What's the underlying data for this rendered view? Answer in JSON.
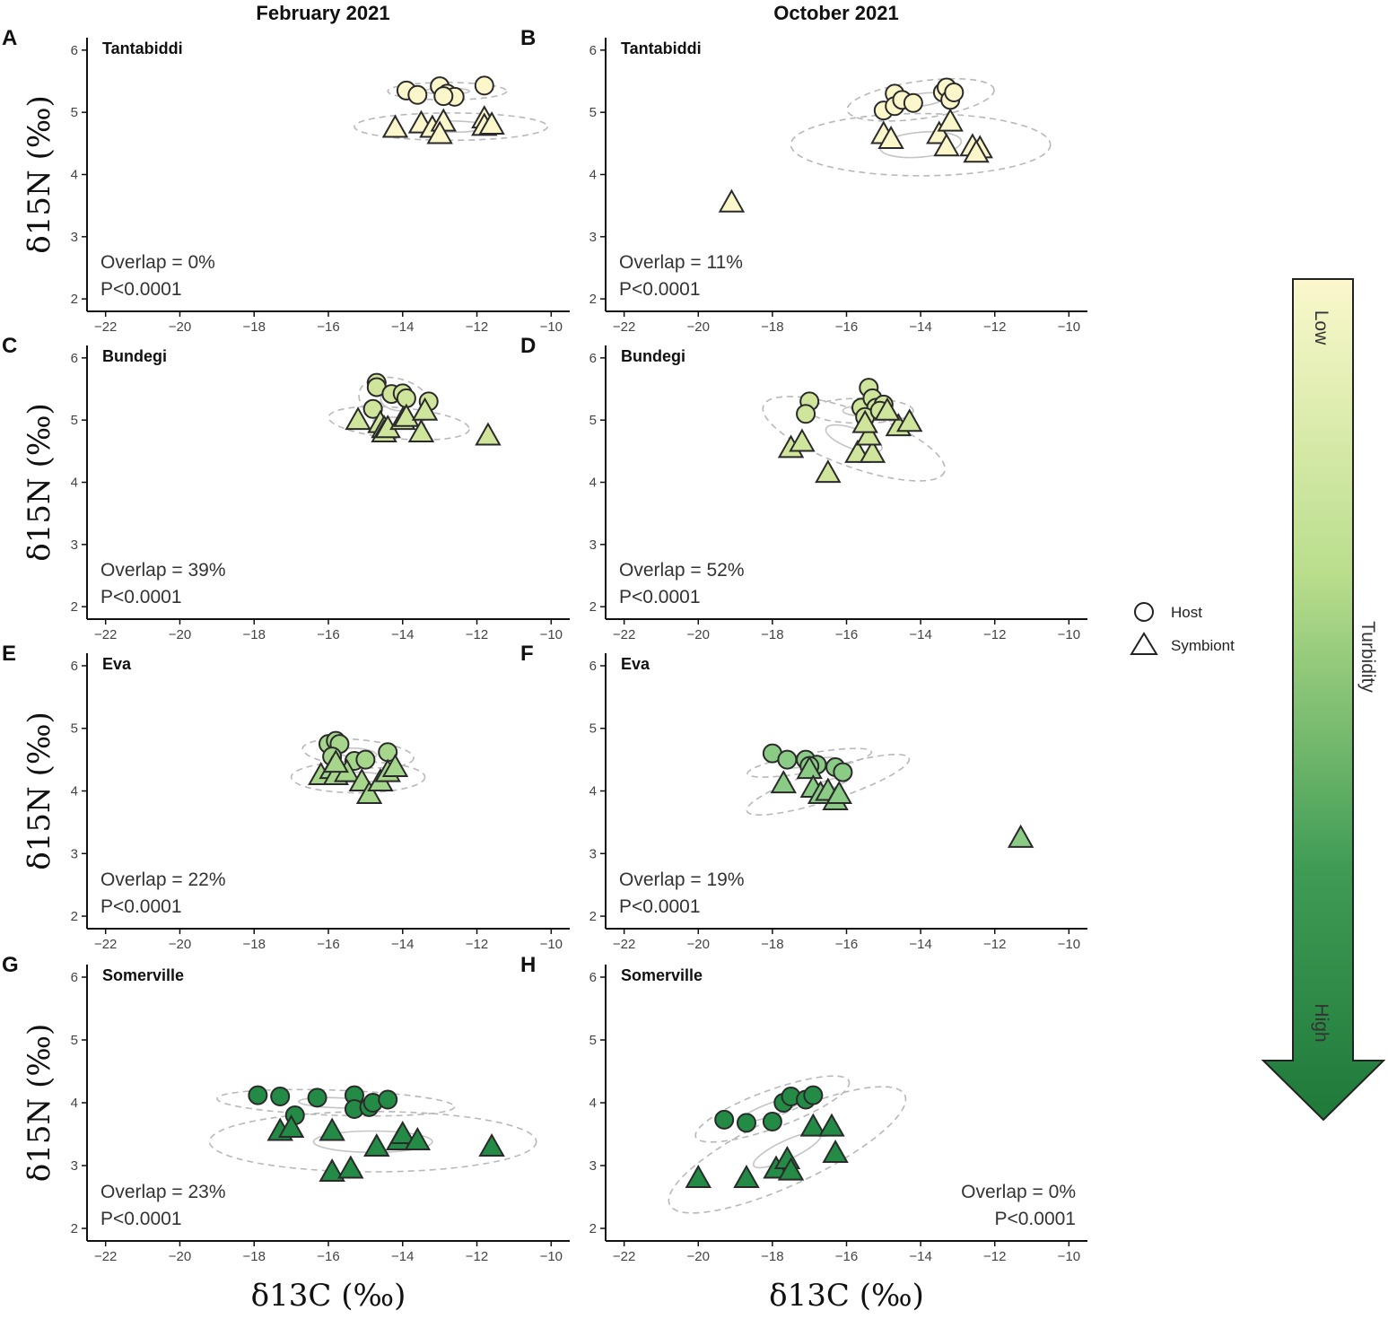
{
  "figure": {
    "col_titles": [
      "February 2021",
      "October 2021"
    ],
    "x_axis_title": "δ13C (‰)",
    "y_axis_title": "δ15N (‰)",
    "legend": {
      "host": "Host",
      "symbiont": "Symbiont"
    },
    "gradient": {
      "title": "Turbidity",
      "low": "Low",
      "high": "High",
      "color_low": "#fbf8cc",
      "color_high": "#1f7a3a"
    }
  },
  "chart_data": [
    {
      "panel": "A",
      "site": "Tantabiddi",
      "type": "scatter",
      "xlim": [
        -22.5,
        -9.5
      ],
      "ylim": [
        1.8,
        6.2
      ],
      "xticks": [
        -22,
        -20,
        -18,
        -16,
        -14,
        -12,
        -10
      ],
      "yticks": [
        2,
        3,
        4,
        5,
        6
      ],
      "overlap": "Overlap = 0%",
      "p": "P<0.0001",
      "annot_pos": "bottom-left",
      "fill": "#fcf6cb",
      "host": [
        [
          -13.9,
          5.35
        ],
        [
          -13.6,
          5.28
        ],
        [
          -13.0,
          5.42
        ],
        [
          -12.8,
          5.3
        ],
        [
          -12.6,
          5.25
        ],
        [
          -12.9,
          5.26
        ],
        [
          -11.8,
          5.43
        ]
      ],
      "symbiont": [
        [
          -14.2,
          4.75
        ],
        [
          -13.5,
          4.82
        ],
        [
          -13.2,
          4.75
        ],
        [
          -12.9,
          4.85
        ],
        [
          -13.0,
          4.65
        ],
        [
          -11.8,
          4.9
        ],
        [
          -11.8,
          4.78
        ],
        [
          -11.6,
          4.8
        ]
      ],
      "host_ellipse": {
        "cx": -12.8,
        "cy": 5.34,
        "rx": 1.6,
        "ry": 0.14,
        "angle": 0
      },
      "host_sea": {
        "cx": -12.8,
        "cy": 5.34,
        "rx": 0.6,
        "ry": 0.05,
        "angle": 0
      },
      "sym_ellipse": {
        "cx": -12.7,
        "cy": 4.77,
        "rx": 2.6,
        "ry": 0.22,
        "angle": 0
      },
      "sym_sea": {
        "cx": -12.7,
        "cy": 4.77,
        "rx": 1.0,
        "ry": 0.09,
        "angle": 0
      }
    },
    {
      "panel": "B",
      "site": "Tantabiddi",
      "type": "scatter",
      "xlim": [
        -22.5,
        -9.5
      ],
      "ylim": [
        1.8,
        6.2
      ],
      "xticks": [
        -22,
        -20,
        -18,
        -16,
        -14,
        -12,
        -10
      ],
      "yticks": [
        2,
        3,
        4,
        5,
        6
      ],
      "overlap": "Overlap = 11%",
      "p": "P<0.0001",
      "annot_pos": "bottom-left",
      "fill": "#fcf6cb",
      "host": [
        [
          -15.0,
          5.03
        ],
        [
          -14.7,
          5.3
        ],
        [
          -14.7,
          5.1
        ],
        [
          -14.5,
          5.2
        ],
        [
          -14.2,
          5.15
        ],
        [
          -13.4,
          5.32
        ],
        [
          -13.3,
          5.4
        ],
        [
          -13.2,
          5.2
        ],
        [
          -13.1,
          5.32
        ]
      ],
      "symbiont": [
        [
          -19.1,
          3.55
        ],
        [
          -15.0,
          4.65
        ],
        [
          -14.8,
          4.57
        ],
        [
          -13.5,
          4.65
        ],
        [
          -13.3,
          4.45
        ],
        [
          -13.2,
          4.85
        ],
        [
          -12.6,
          4.45
        ],
        [
          -12.4,
          4.42
        ],
        [
          -12.5,
          4.35
        ]
      ],
      "host_ellipse": {
        "cx": -14.0,
        "cy": 5.2,
        "rx": 2.0,
        "ry": 0.3,
        "angle": 8
      },
      "host_sea": {
        "cx": -14.0,
        "cy": 5.2,
        "rx": 0.7,
        "ry": 0.1,
        "angle": 8
      },
      "sym_ellipse": {
        "cx": -14.0,
        "cy": 4.48,
        "rx": 3.5,
        "ry": 0.5,
        "angle": 0
      },
      "sym_sea": {
        "cx": -14.0,
        "cy": 4.48,
        "rx": 1.1,
        "ry": 0.2,
        "angle": 5
      }
    },
    {
      "panel": "C",
      "site": "Bundegi",
      "type": "scatter",
      "xlim": [
        -22.5,
        -9.5
      ],
      "ylim": [
        1.8,
        6.2
      ],
      "xticks": [
        -22,
        -20,
        -18,
        -16,
        -14,
        -12,
        -10
      ],
      "yticks": [
        2,
        3,
        4,
        5,
        6
      ],
      "overlap": "Overlap = 39%",
      "p": "P<0.0001",
      "annot_pos": "bottom-left",
      "fill": "#cfe59b",
      "host": [
        [
          -14.7,
          5.6
        ],
        [
          -14.7,
          5.53
        ],
        [
          -14.3,
          5.42
        ],
        [
          -14.0,
          5.43
        ],
        [
          -13.9,
          5.35
        ],
        [
          -13.3,
          5.3
        ],
        [
          -14.8,
          5.18
        ]
      ],
      "symbiont": [
        [
          -15.2,
          5.0
        ],
        [
          -14.6,
          4.95
        ],
        [
          -14.5,
          4.87
        ],
        [
          -14.5,
          4.8
        ],
        [
          -14.4,
          4.87
        ],
        [
          -14.0,
          5.0
        ],
        [
          -13.9,
          5.05
        ],
        [
          -13.5,
          4.8
        ],
        [
          -13.4,
          5.15
        ],
        [
          -11.7,
          4.75
        ]
      ],
      "host_ellipse": {
        "cx": -14.2,
        "cy": 5.3,
        "rx": 1.0,
        "ry": 0.37,
        "angle": -15
      },
      "host_sea": {
        "cx": -14.2,
        "cy": 5.3,
        "rx": 0.4,
        "ry": 0.14,
        "angle": -15
      },
      "sym_ellipse": {
        "cx": -14.1,
        "cy": 4.95,
        "rx": 1.9,
        "ry": 0.25,
        "angle": -5
      },
      "sym_sea": {
        "cx": -14.1,
        "cy": 4.95,
        "rx": 0.7,
        "ry": 0.09,
        "angle": -5
      }
    },
    {
      "panel": "D",
      "site": "Bundegi",
      "type": "scatter",
      "xlim": [
        -22.5,
        -9.5
      ],
      "ylim": [
        1.8,
        6.2
      ],
      "xticks": [
        -22,
        -20,
        -18,
        -16,
        -14,
        -12,
        -10
      ],
      "yticks": [
        2,
        3,
        4,
        5,
        6
      ],
      "overlap": "Overlap = 52%",
      "p": "P<0.0001",
      "annot_pos": "bottom-left",
      "fill": "#cfe59b",
      "host": [
        [
          -17.0,
          5.3
        ],
        [
          -17.1,
          5.1
        ],
        [
          -15.4,
          5.52
        ],
        [
          -15.6,
          5.2
        ],
        [
          -15.3,
          5.35
        ],
        [
          -15.2,
          5.2
        ],
        [
          -15.0,
          5.25
        ],
        [
          -15.5,
          5.05
        ],
        [
          -15.1,
          5.15
        ]
      ],
      "symbiont": [
        [
          -17.5,
          4.55
        ],
        [
          -17.2,
          4.65
        ],
        [
          -16.5,
          4.15
        ],
        [
          -15.7,
          4.47
        ],
        [
          -15.3,
          4.47
        ],
        [
          -15.4,
          4.75
        ],
        [
          -15.5,
          4.95
        ],
        [
          -14.6,
          4.9
        ],
        [
          -14.3,
          4.97
        ],
        [
          -14.9,
          5.15
        ]
      ],
      "host_ellipse": {
        "cx": -15.6,
        "cy": 5.15,
        "rx": 1.4,
        "ry": 0.2,
        "angle": 0
      },
      "host_sea": {
        "cx": -15.6,
        "cy": 5.15,
        "rx": 0.5,
        "ry": 0.08,
        "angle": 0
      },
      "sym_ellipse": {
        "cx": -15.8,
        "cy": 4.7,
        "rx": 2.6,
        "ry": 0.45,
        "angle": -20
      },
      "sym_sea": {
        "cx": -15.8,
        "cy": 4.7,
        "rx": 0.8,
        "ry": 0.16,
        "angle": -20
      }
    },
    {
      "panel": "E",
      "site": "Eva",
      "type": "scatter",
      "xlim": [
        -22.5,
        -9.5
      ],
      "ylim": [
        1.8,
        6.2
      ],
      "xticks": [
        -22,
        -20,
        -18,
        -16,
        -14,
        -12,
        -10
      ],
      "yticks": [
        2,
        3,
        4,
        5,
        6
      ],
      "overlap": "Overlap = 22%",
      "p": "P<0.0001",
      "annot_pos": "bottom-left",
      "fill": "#a5d68c",
      "host": [
        [
          -16.0,
          4.75
        ],
        [
          -15.8,
          4.8
        ],
        [
          -15.7,
          4.75
        ],
        [
          -15.3,
          4.48
        ],
        [
          -15.0,
          4.5
        ],
        [
          -14.4,
          4.62
        ],
        [
          -15.9,
          4.55
        ]
      ],
      "symbiont": [
        [
          -16.2,
          4.25
        ],
        [
          -15.9,
          4.35
        ],
        [
          -15.8,
          4.25
        ],
        [
          -15.5,
          4.3
        ],
        [
          -15.1,
          4.15
        ],
        [
          -14.9,
          3.95
        ],
        [
          -14.6,
          4.15
        ],
        [
          -14.4,
          4.3
        ],
        [
          -14.2,
          4.38
        ],
        [
          -15.8,
          4.45
        ]
      ],
      "host_ellipse": {
        "cx": -15.2,
        "cy": 4.6,
        "rx": 1.5,
        "ry": 0.22,
        "angle": -5
      },
      "host_sea": {
        "cx": -15.2,
        "cy": 4.6,
        "rx": 0.5,
        "ry": 0.08,
        "angle": -5
      },
      "sym_ellipse": {
        "cx": -15.2,
        "cy": 4.22,
        "rx": 1.8,
        "ry": 0.25,
        "angle": 0
      },
      "sym_sea": {
        "cx": -15.2,
        "cy": 4.22,
        "rx": 0.7,
        "ry": 0.08,
        "angle": 0
      }
    },
    {
      "panel": "F",
      "site": "Eva",
      "type": "scatter",
      "xlim": [
        -22.5,
        -9.5
      ],
      "ylim": [
        1.8,
        6.2
      ],
      "xticks": [
        -22,
        -20,
        -18,
        -16,
        -14,
        -12,
        -10
      ],
      "yticks": [
        2,
        3,
        4,
        5,
        6
      ],
      "overlap": "Overlap = 19%",
      "p": "P<0.0001",
      "annot_pos": "bottom-left",
      "fill": "#8acb86",
      "host": [
        [
          -18.0,
          4.6
        ],
        [
          -17.6,
          4.5
        ],
        [
          -17.1,
          4.5
        ],
        [
          -16.8,
          4.42
        ],
        [
          -16.3,
          4.38
        ],
        [
          -16.1,
          4.3
        ],
        [
          -17.0,
          4.4
        ]
      ],
      "symbiont": [
        [
          -17.7,
          4.12
        ],
        [
          -17.0,
          4.35
        ],
        [
          -16.9,
          4.05
        ],
        [
          -16.7,
          3.95
        ],
        [
          -16.5,
          4.0
        ],
        [
          -16.3,
          3.85
        ],
        [
          -16.2,
          3.95
        ],
        [
          -11.3,
          3.25
        ]
      ],
      "host_ellipse": {
        "cx": -17.0,
        "cy": 4.45,
        "rx": 1.7,
        "ry": 0.15,
        "angle": 10
      },
      "host_sea": {
        "cx": -17.0,
        "cy": 4.45,
        "rx": 0.7,
        "ry": 0.05,
        "angle": 10
      },
      "sym_ellipse": {
        "cx": -16.5,
        "cy": 4.1,
        "rx": 2.3,
        "ry": 0.25,
        "angle": 18
      },
      "sym_sea": {
        "cx": -16.5,
        "cy": 4.1,
        "rx": 0.6,
        "ry": 0.07,
        "angle": 18
      }
    },
    {
      "panel": "G",
      "site": "Somerville",
      "type": "scatter",
      "xlim": [
        -22.5,
        -9.5
      ],
      "ylim": [
        1.8,
        6.2
      ],
      "xticks": [
        -22,
        -20,
        -18,
        -16,
        -14,
        -12,
        -10
      ],
      "yticks": [
        2,
        3,
        4,
        5,
        6
      ],
      "overlap": "Overlap = 23%",
      "p": "P<0.0001",
      "annot_pos": "bottom-left",
      "fill": "#238b45",
      "host": [
        [
          -17.9,
          4.12
        ],
        [
          -17.3,
          4.1
        ],
        [
          -16.9,
          3.8
        ],
        [
          -16.3,
          4.08
        ],
        [
          -15.3,
          4.12
        ],
        [
          -15.3,
          3.9
        ],
        [
          -14.9,
          3.93
        ],
        [
          -14.8,
          4.0
        ],
        [
          -14.4,
          4.05
        ]
      ],
      "symbiont": [
        [
          -17.3,
          3.55
        ],
        [
          -17.0,
          3.6
        ],
        [
          -15.9,
          3.55
        ],
        [
          -15.9,
          2.9
        ],
        [
          -15.4,
          2.95
        ],
        [
          -14.7,
          3.3
        ],
        [
          -14.1,
          3.4
        ],
        [
          -14.0,
          3.5
        ],
        [
          -13.6,
          3.4
        ],
        [
          -11.6,
          3.3
        ]
      ],
      "host_ellipse": {
        "cx": -15.8,
        "cy": 4.0,
        "rx": 3.2,
        "ry": 0.2,
        "angle": -2
      },
      "host_sea": {
        "cx": -15.8,
        "cy": 4.0,
        "rx": 1.0,
        "ry": 0.08,
        "angle": -2
      },
      "sym_ellipse": {
        "cx": -14.8,
        "cy": 3.38,
        "rx": 4.4,
        "ry": 0.48,
        "angle": 0
      },
      "sym_sea": {
        "cx": -14.8,
        "cy": 3.38,
        "rx": 1.6,
        "ry": 0.17,
        "angle": 0
      }
    },
    {
      "panel": "H",
      "site": "Somerville",
      "type": "scatter",
      "xlim": [
        -22.5,
        -9.5
      ],
      "ylim": [
        1.8,
        6.2
      ],
      "xticks": [
        -22,
        -20,
        -18,
        -16,
        -14,
        -12,
        -10
      ],
      "yticks": [
        2,
        3,
        4,
        5,
        6
      ],
      "overlap": "Overlap = 0%",
      "p": "P<0.0001",
      "annot_pos": "bottom-right",
      "fill": "#238b45",
      "host": [
        [
          -19.3,
          3.73
        ],
        [
          -18.7,
          3.68
        ],
        [
          -18.0,
          3.7
        ],
        [
          -17.7,
          4.0
        ],
        [
          -17.5,
          4.1
        ],
        [
          -17.1,
          4.05
        ],
        [
          -16.9,
          4.12
        ]
      ],
      "symbiont": [
        [
          -20.0,
          2.8
        ],
        [
          -18.7,
          2.8
        ],
        [
          -17.9,
          2.95
        ],
        [
          -17.6,
          3.1
        ],
        [
          -17.5,
          2.92
        ],
        [
          -16.9,
          3.62
        ],
        [
          -16.4,
          3.62
        ],
        [
          -16.3,
          3.2
        ]
      ],
      "host_ellipse": {
        "cx": -18.0,
        "cy": 3.9,
        "rx": 2.2,
        "ry": 0.3,
        "angle": 20
      },
      "host_sea": {
        "cx": -18.0,
        "cy": 3.9,
        "rx": 0.9,
        "ry": 0.1,
        "angle": 20
      },
      "sym_ellipse": {
        "cx": -17.6,
        "cy": 3.25,
        "rx": 3.5,
        "ry": 0.55,
        "angle": 25
      },
      "sym_sea": {
        "cx": -17.6,
        "cy": 3.25,
        "rx": 1.0,
        "ry": 0.15,
        "angle": 25
      }
    }
  ]
}
